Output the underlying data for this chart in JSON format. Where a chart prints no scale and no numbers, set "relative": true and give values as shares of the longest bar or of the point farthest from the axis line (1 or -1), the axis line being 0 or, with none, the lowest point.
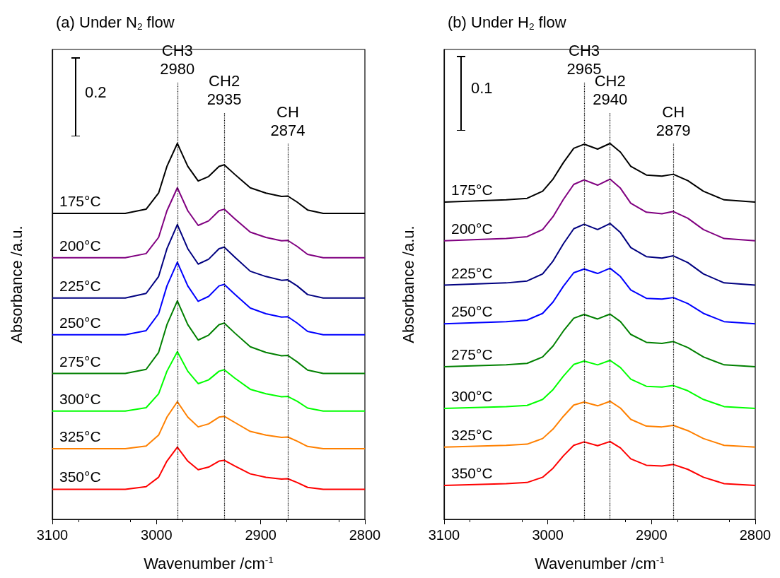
{
  "chart_data": [
    {
      "type": "line",
      "title": "(a) Under N$_{2}$ flow",
      "xlabel": "Wavenumber /cm$^{-1}$",
      "ylabel": "Absorbance /a.u.",
      "relative": true,
      "xlim": [
        3100,
        2800
      ],
      "xticks": [
        3100,
        3000,
        2900,
        2800
      ],
      "annotations": [
        "0.2"
      ],
      "x": [
        3100,
        3030,
        3010,
        2998,
        2990,
        2980,
        2970,
        2960,
        2950,
        2940,
        2935,
        2925,
        2910,
        2895,
        2880,
        2874,
        2865,
        2855,
        2840,
        2800
      ],
      "ref_lines": [
        {
          "axis": "x",
          "value": 2980,
          "label": "CH3\n2980",
          "line_style": "dotted"
        },
        {
          "axis": "x",
          "value": 2935,
          "label": "CH2\n2935",
          "line_style": "dotted"
        },
        {
          "axis": "x",
          "value": 2874,
          "label": "CH\n2874",
          "line_style": "dotted"
        }
      ],
      "series": [
        {
          "name": "175°C",
          "color": "#000000",
          "values": [
            0.814,
            0.814,
            0.825,
            0.868,
            0.939,
            1.0,
            0.939,
            0.9,
            0.912,
            0.939,
            0.943,
            0.918,
            0.882,
            0.868,
            0.859,
            0.86,
            0.844,
            0.823,
            0.814,
            0.814
          ]
        },
        {
          "name": "200°C",
          "color": "#800080",
          "values": [
            0.696,
            0.696,
            0.707,
            0.75,
            0.821,
            0.882,
            0.821,
            0.782,
            0.794,
            0.821,
            0.825,
            0.8,
            0.764,
            0.75,
            0.741,
            0.742,
            0.726,
            0.705,
            0.696,
            0.696
          ]
        },
        {
          "name": "225°C",
          "color": "#000080",
          "values": [
            0.589,
            0.589,
            0.601,
            0.646,
            0.72,
            0.784,
            0.72,
            0.679,
            0.692,
            0.72,
            0.724,
            0.698,
            0.66,
            0.646,
            0.636,
            0.637,
            0.621,
            0.598,
            0.589,
            0.589
          ]
        },
        {
          "name": "250°C",
          "color": "#0000ff",
          "values": [
            0.491,
            0.491,
            0.502,
            0.547,
            0.621,
            0.684,
            0.621,
            0.58,
            0.593,
            0.621,
            0.625,
            0.599,
            0.562,
            0.547,
            0.538,
            0.539,
            0.522,
            0.5,
            0.491,
            0.491
          ]
        },
        {
          "name": "275°C",
          "color": "#008000",
          "values": [
            0.388,
            0.388,
            0.399,
            0.444,
            0.518,
            0.581,
            0.518,
            0.477,
            0.49,
            0.518,
            0.522,
            0.496,
            0.459,
            0.444,
            0.435,
            0.436,
            0.419,
            0.397,
            0.388,
            0.388
          ]
        },
        {
          "name": "300°C",
          "color": "#00ff00",
          "values": [
            0.288,
            0.288,
            0.297,
            0.334,
            0.394,
            0.446,
            0.394,
            0.361,
            0.371,
            0.394,
            0.398,
            0.376,
            0.346,
            0.334,
            0.326,
            0.327,
            0.314,
            0.296,
            0.288,
            0.288
          ]
        },
        {
          "name": "325°C",
          "color": "#ff8000",
          "values": [
            0.188,
            0.188,
            0.195,
            0.224,
            0.272,
            0.313,
            0.272,
            0.246,
            0.254,
            0.272,
            0.274,
            0.258,
            0.234,
            0.224,
            0.218,
            0.219,
            0.208,
            0.194,
            0.188,
            0.188
          ]
        },
        {
          "name": "350°C",
          "color": "#ff0000",
          "values": [
            0.08,
            0.08,
            0.087,
            0.112,
            0.155,
            0.192,
            0.155,
            0.132,
            0.139,
            0.155,
            0.157,
            0.142,
            0.121,
            0.112,
            0.107,
            0.108,
            0.098,
            0.085,
            0.08,
            0.08
          ]
        }
      ]
    },
    {
      "type": "line",
      "title": "(b) Under H$_{2}$ flow",
      "xlabel": "Wavenumber /cm$^{-1}$",
      "ylabel": "Absorbance /a.u.",
      "relative": true,
      "xlim": [
        3100,
        2800
      ],
      "xticks": [
        3100,
        3000,
        2900,
        2800
      ],
      "annotations": [
        "0.1"
      ],
      "x": [
        3100,
        3040,
        3020,
        3005,
        2995,
        2985,
        2975,
        2965,
        2952,
        2940,
        2930,
        2920,
        2905,
        2890,
        2879,
        2865,
        2850,
        2830,
        2800
      ],
      "ref_lines": [
        {
          "axis": "x",
          "value": 2965,
          "label": "CH3\n2965",
          "line_style": "dotted"
        },
        {
          "axis": "x",
          "value": 2940,
          "label": "CH2\n2940",
          "line_style": "dotted"
        },
        {
          "axis": "x",
          "value": 2879,
          "label": "CH\n2879",
          "line_style": "dotted"
        }
      ],
      "series": [
        {
          "name": "175°C",
          "color": "#000000",
          "values": [
            0.844,
            0.85,
            0.854,
            0.873,
            0.905,
            0.949,
            0.987,
            0.998,
            0.985,
            1.0,
            0.977,
            0.939,
            0.916,
            0.913,
            0.918,
            0.901,
            0.873,
            0.85,
            0.844
          ]
        },
        {
          "name": "200°C",
          "color": "#800080",
          "values": [
            0.741,
            0.747,
            0.752,
            0.771,
            0.805,
            0.851,
            0.891,
            0.903,
            0.889,
            0.905,
            0.881,
            0.841,
            0.817,
            0.813,
            0.819,
            0.801,
            0.771,
            0.747,
            0.741
          ]
        },
        {
          "name": "225°C",
          "color": "#000080",
          "values": [
            0.623,
            0.629,
            0.634,
            0.653,
            0.687,
            0.733,
            0.773,
            0.785,
            0.771,
            0.787,
            0.763,
            0.723,
            0.699,
            0.695,
            0.701,
            0.683,
            0.653,
            0.629,
            0.623
          ]
        },
        {
          "name": "250°C",
          "color": "#0000ff",
          "values": [
            0.52,
            0.526,
            0.53,
            0.548,
            0.578,
            0.62,
            0.656,
            0.666,
            0.654,
            0.668,
            0.646,
            0.61,
            0.588,
            0.586,
            0.59,
            0.574,
            0.548,
            0.526,
            0.52
          ]
        },
        {
          "name": "275°C",
          "color": "#008000",
          "values": [
            0.406,
            0.411,
            0.415,
            0.432,
            0.461,
            0.501,
            0.535,
            0.545,
            0.533,
            0.546,
            0.526,
            0.492,
            0.471,
            0.468,
            0.473,
            0.457,
            0.432,
            0.411,
            0.406
          ]
        },
        {
          "name": "300°C",
          "color": "#00ff00",
          "values": [
            0.295,
            0.3,
            0.303,
            0.319,
            0.345,
            0.381,
            0.412,
            0.421,
            0.411,
            0.423,
            0.404,
            0.373,
            0.354,
            0.352,
            0.356,
            0.342,
            0.319,
            0.3,
            0.295
          ]
        },
        {
          "name": "325°C",
          "color": "#ff8000",
          "values": [
            0.192,
            0.197,
            0.2,
            0.215,
            0.24,
            0.274,
            0.304,
            0.312,
            0.302,
            0.314,
            0.296,
            0.266,
            0.248,
            0.246,
            0.25,
            0.236,
            0.215,
            0.197,
            0.192
          ]
        },
        {
          "name": "350°C",
          "color": "#ff0000",
          "values": [
            0.09,
            0.095,
            0.098,
            0.112,
            0.136,
            0.169,
            0.197,
            0.206,
            0.196,
            0.207,
            0.19,
            0.161,
            0.144,
            0.142,
            0.146,
            0.133,
            0.112,
            0.095,
            0.09
          ]
        }
      ]
    }
  ]
}
